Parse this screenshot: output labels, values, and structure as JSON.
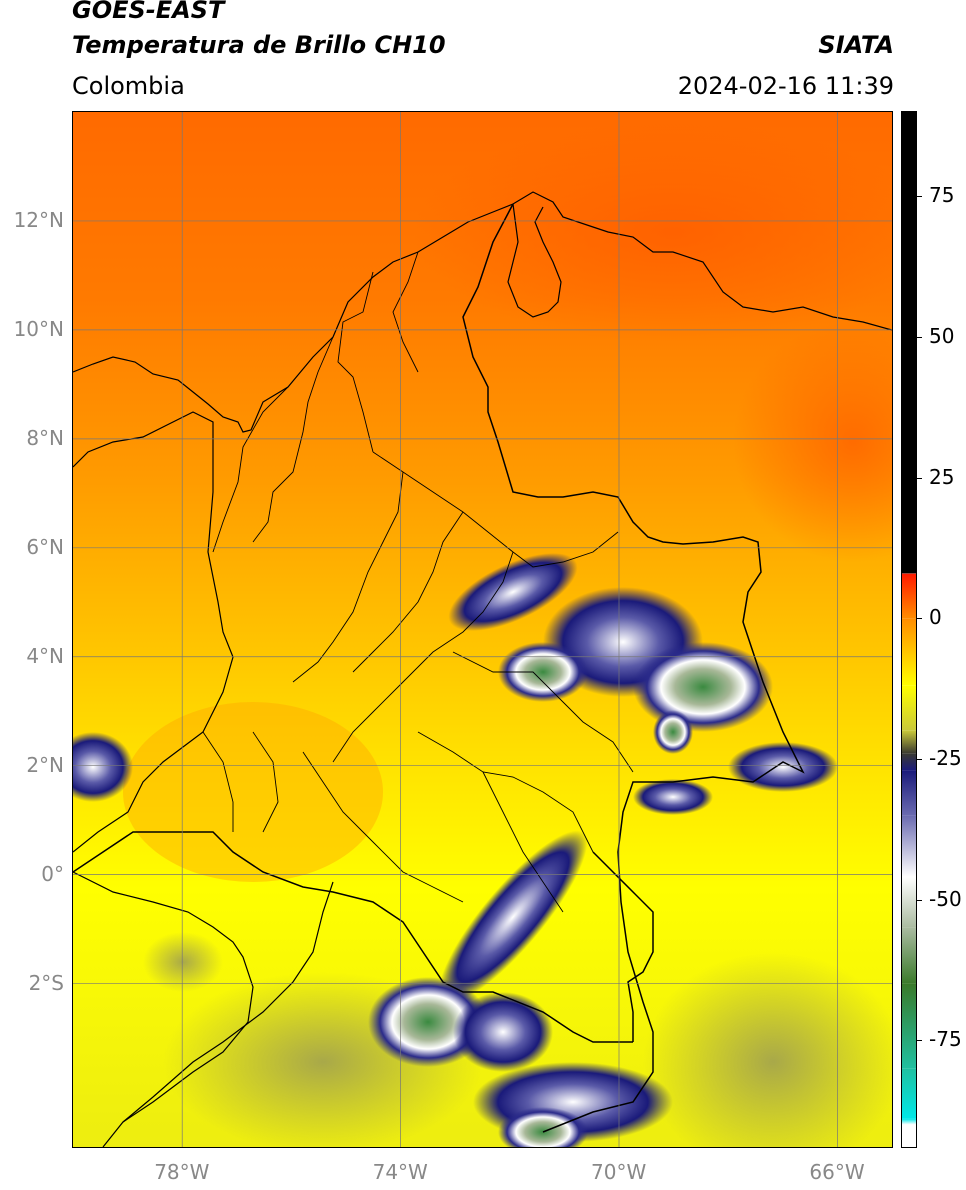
{
  "header": {
    "satellite": "GOES-EAST",
    "product": "Temperatura de Brillo CH10",
    "region": "Colombia",
    "source": "SIATA",
    "datetime": "2024-02-16 11:39"
  },
  "map": {
    "lon_range": [
      -80,
      -65
    ],
    "lat_range": [
      -5,
      14
    ],
    "lon_ticks": [
      {
        "value": -78,
        "label": "78°W"
      },
      {
        "value": -74,
        "label": "74°W"
      },
      {
        "value": -70,
        "label": "70°W"
      },
      {
        "value": -66,
        "label": "66°W"
      }
    ],
    "lat_ticks": [
      {
        "value": 12,
        "label": "12°N"
      },
      {
        "value": 10,
        "label": "10°N"
      },
      {
        "value": 8,
        "label": "8°N"
      },
      {
        "value": 6,
        "label": "6°N"
      },
      {
        "value": 4,
        "label": "4°N"
      },
      {
        "value": 2,
        "label": "2°N"
      },
      {
        "value": 0,
        "label": "0°"
      },
      {
        "value": -2,
        "label": "2°S"
      }
    ],
    "grid": true
  },
  "colorbar": {
    "range": [
      -94,
      90
    ],
    "ticks": [
      {
        "value": 75,
        "label": "75"
      },
      {
        "value": 50,
        "label": "50"
      },
      {
        "value": 25,
        "label": "25"
      },
      {
        "value": 0,
        "label": "0"
      },
      {
        "value": -25,
        "label": "-25"
      },
      {
        "value": -50,
        "label": "-50"
      },
      {
        "value": -75,
        "label": "-75"
      }
    ],
    "stops": [
      {
        "value": 90,
        "color": "#000000"
      },
      {
        "value": 8,
        "color": "#000000"
      },
      {
        "value": 7.9,
        "color": "#ff1a00"
      },
      {
        "value": 0,
        "color": "#ff8c00"
      },
      {
        "value": -12,
        "color": "#ffff00"
      },
      {
        "value": -20,
        "color": "#c8c83a"
      },
      {
        "value": -24,
        "color": "#3a3a30"
      },
      {
        "value": -27,
        "color": "#1a1a7a"
      },
      {
        "value": -35,
        "color": "#6a6ab0"
      },
      {
        "value": -46,
        "color": "#ffffff"
      },
      {
        "value": -55,
        "color": "#aabba0"
      },
      {
        "value": -65,
        "color": "#3a7a2a"
      },
      {
        "value": -80,
        "color": "#20c0a0"
      },
      {
        "value": -89,
        "color": "#00e8e8"
      },
      {
        "value": -90,
        "color": "#ffffff"
      },
      {
        "value": -94,
        "color": "#ffffff"
      }
    ]
  }
}
